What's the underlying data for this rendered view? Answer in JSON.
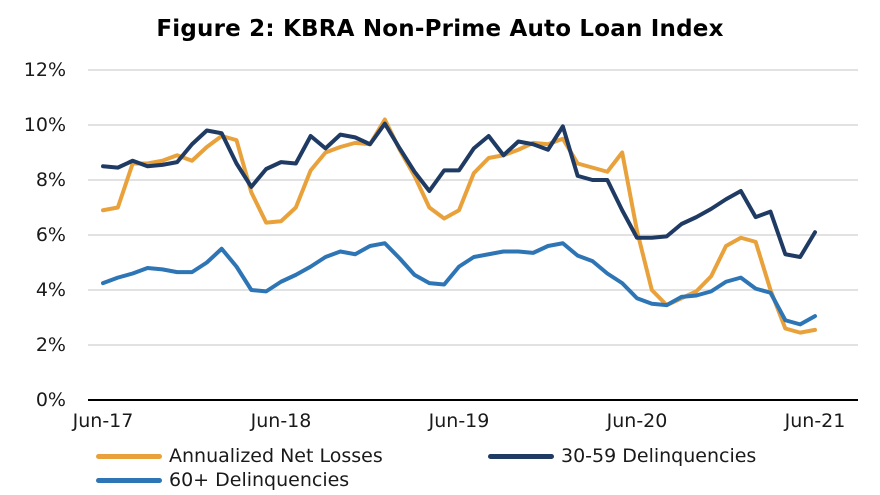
{
  "title": "Figure 2: KBRA Non-Prime Auto Loan Index",
  "chart_data": {
    "type": "line",
    "title": "Figure 2: KBRA Non-Prime Auto Loan Index",
    "xlabel": "",
    "ylabel": "",
    "ylim": [
      0,
      12
    ],
    "grid": true,
    "legend_position": "bottom",
    "grid_color": "#d9d9d9",
    "axis_color": "#000000",
    "y_tick_labels": [
      "0%",
      "2%",
      "4%",
      "6%",
      "8%",
      "10%",
      "12%"
    ],
    "x_tick_labels": [
      "Jun-17",
      "Jun-18",
      "Jun-19",
      "Jun-20",
      "Jun-21"
    ],
    "categories": [
      "Jun-17",
      "Jul-17",
      "Aug-17",
      "Sep-17",
      "Oct-17",
      "Nov-17",
      "Dec-17",
      "Jan-18",
      "Feb-18",
      "Mar-18",
      "Apr-18",
      "May-18",
      "Jun-18",
      "Jul-18",
      "Aug-18",
      "Sep-18",
      "Oct-18",
      "Nov-18",
      "Dec-18",
      "Jan-19",
      "Feb-19",
      "Mar-19",
      "Apr-19",
      "May-19",
      "Jun-19",
      "Jul-19",
      "Aug-19",
      "Sep-19",
      "Oct-19",
      "Nov-19",
      "Dec-19",
      "Jan-20",
      "Feb-20",
      "Mar-20",
      "Apr-20",
      "May-20",
      "Jun-20",
      "Jul-20",
      "Aug-20",
      "Sep-20",
      "Oct-20",
      "Nov-20",
      "Dec-20",
      "Jan-21",
      "Feb-21",
      "Mar-21",
      "Apr-21",
      "May-21",
      "Jun-21"
    ],
    "series": [
      {
        "name": "Annualized Net Losses",
        "color": "#E9A23B",
        "values": [
          6.9,
          7.0,
          8.6,
          8.6,
          8.7,
          8.9,
          8.7,
          9.2,
          9.6,
          9.45,
          7.55,
          6.45,
          6.5,
          7.0,
          8.35,
          9.0,
          9.2,
          9.35,
          9.3,
          10.2,
          9.1,
          8.15,
          7.0,
          6.6,
          6.9,
          8.25,
          8.8,
          8.9,
          9.1,
          9.35,
          9.3,
          9.5,
          8.6,
          8.45,
          8.3,
          9.0,
          6.15,
          4.0,
          3.45,
          3.7,
          3.95,
          4.5,
          5.6,
          5.9,
          5.75,
          4.0,
          2.6,
          2.45,
          2.55
        ]
      },
      {
        "name": "30-59 Delinquencies",
        "color": "#1F3B63",
        "values": [
          8.5,
          8.45,
          8.7,
          8.5,
          8.55,
          8.65,
          9.3,
          9.8,
          9.7,
          8.6,
          7.75,
          8.4,
          8.65,
          8.6,
          9.6,
          9.15,
          9.65,
          9.55,
          9.3,
          10.05,
          9.15,
          8.3,
          7.6,
          8.35,
          8.35,
          9.15,
          9.6,
          8.9,
          9.4,
          9.3,
          9.1,
          9.95,
          8.15,
          8.0,
          8.0,
          6.9,
          5.9,
          5.9,
          5.95,
          6.4,
          6.65,
          6.95,
          7.3,
          7.6,
          6.65,
          6.85,
          5.3,
          5.2,
          6.1
        ]
      },
      {
        "name": "60+ Delinquencies",
        "color": "#2E75B6",
        "values": [
          4.25,
          4.45,
          4.6,
          4.8,
          4.75,
          4.65,
          4.65,
          5.0,
          5.5,
          4.85,
          4.0,
          3.95,
          4.3,
          4.55,
          4.85,
          5.2,
          5.4,
          5.3,
          5.6,
          5.7,
          5.15,
          4.55,
          4.25,
          4.2,
          4.85,
          5.2,
          5.3,
          5.4,
          5.4,
          5.35,
          5.6,
          5.7,
          5.25,
          5.05,
          4.6,
          4.25,
          3.7,
          3.5,
          3.45,
          3.75,
          3.8,
          3.95,
          4.3,
          4.45,
          4.05,
          3.9,
          2.9,
          2.75,
          3.05
        ]
      }
    ]
  }
}
